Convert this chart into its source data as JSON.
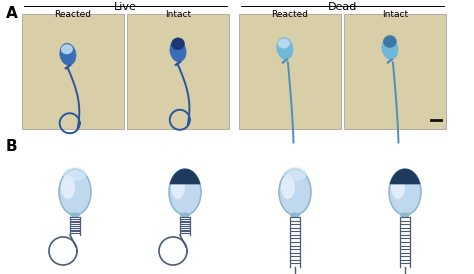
{
  "panel_A_label": "A",
  "panel_B_label": "B",
  "live_label": "Live",
  "dead_label": "Dead",
  "reacted_label": "Reacted",
  "intact_label": "Intact",
  "box_bg": "#d8cfa8",
  "figure_bg": "#ffffff",
  "dark_blue": "#1e3a6e",
  "mid_blue": "#3a6ea8",
  "light_blue": "#6aaed8",
  "pale_blue": "#a8cce0",
  "body_light": "#c8dcea",
  "body_edge": "#7aaac8",
  "acro_dark": "#1e3a5f",
  "tail_col": "#4a5c7a",
  "white_hl": "#e8f4ff",
  "scale_bar_color": "#111111"
}
